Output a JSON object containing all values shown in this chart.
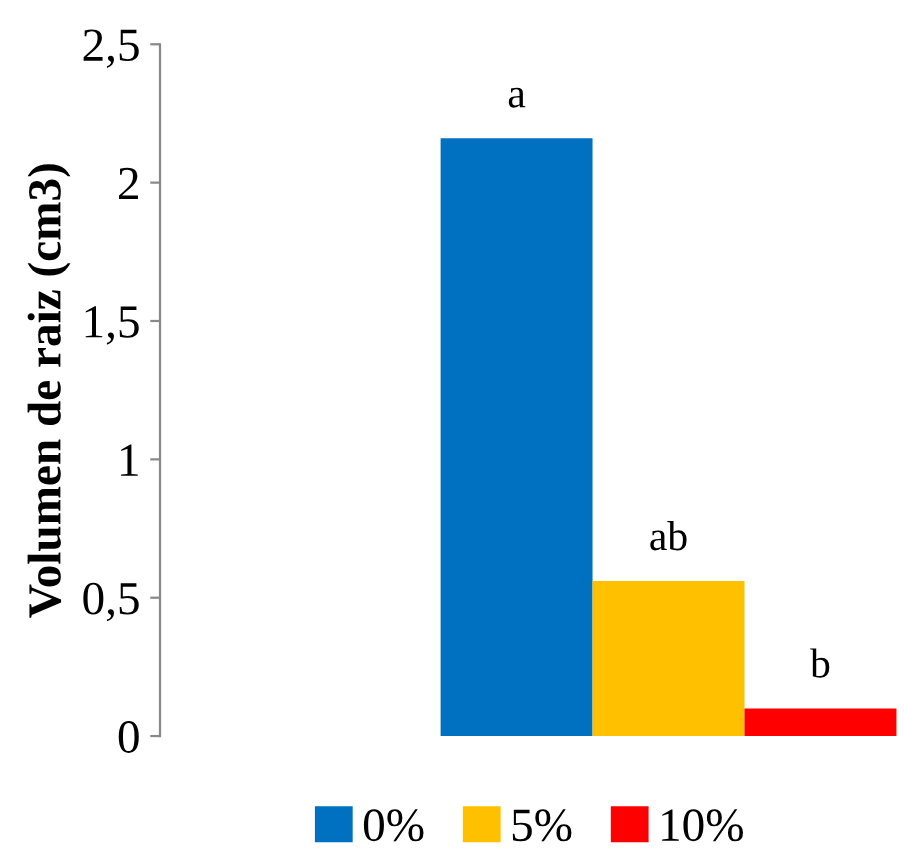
{
  "chart_data": {
    "type": "bar",
    "ylabel": "Volumen de raiz (cm3)",
    "categories": [
      null
    ],
    "series": [
      {
        "name": "0%",
        "color": "#0070c0",
        "values": [
          2.16
        ]
      },
      {
        "name": "5%",
        "color": "#ffc000",
        "values": [
          0.56
        ]
      },
      {
        "name": "10%",
        "color": "#ff0000",
        "values": [
          0.1
        ]
      }
    ],
    "annotations": [
      "a",
      "ab",
      "b"
    ],
    "ylim": [
      0,
      2.5
    ],
    "yticks": [
      0,
      {
        "value": 0.5,
        "label": "0,5"
      },
      1,
      {
        "value": 1.5,
        "label": "1,5"
      },
      2,
      {
        "value": 2.5,
        "label": "2,5"
      }
    ],
    "grid": false,
    "legend": "bottom"
  }
}
